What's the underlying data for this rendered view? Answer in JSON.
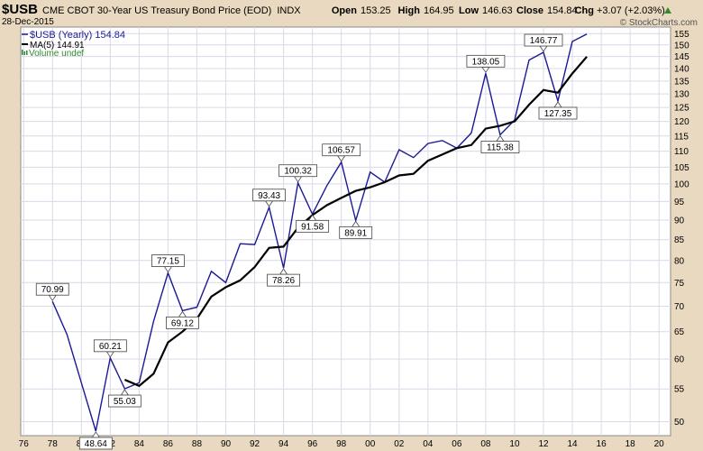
{
  "header": {
    "symbol": "$USB",
    "description": "CME CBOT 30-Year US Treasury Bond Price (EOD)",
    "exchange": "INDX",
    "date": "28-Dec-2015",
    "open_label": "Open",
    "open": "153.25",
    "high_label": "High",
    "high": "164.95",
    "low_label": "Low",
    "low": "146.63",
    "close_label": "Close",
    "close": "154.84",
    "chg_label": "Chg",
    "chg": "+3.07 (+2.03%)",
    "watermark": "© StockCharts.com"
  },
  "legend": {
    "price": "$USB (Yearly) 154.84",
    "ma": "MA(5) 144.91",
    "volume": "Volume undef"
  },
  "colors": {
    "price_line": "#1a1a96",
    "ma_line": "#000000",
    "volume_icon": "#2e8b2e",
    "up_arrow": "#2e8b2e",
    "plot_bg": "#ffffff",
    "grid": "#d9d9e8",
    "frame_bg": "#e8d9c0",
    "label_box": "#ffffff"
  },
  "chart_data": {
    "type": "line",
    "y_scale": "log",
    "ylim": [
      48,
      158
    ],
    "xlim": [
      1975.8,
      2020.8
    ],
    "x_ticks": [
      1976,
      1978,
      1980,
      1982,
      1984,
      1986,
      1988,
      1990,
      1992,
      1994,
      1996,
      1998,
      2000,
      2002,
      2004,
      2006,
      2008,
      2010,
      2012,
      2014,
      2016,
      2018,
      2020
    ],
    "x_tick_labels": [
      "76",
      "78",
      "80",
      "82",
      "84",
      "86",
      "88",
      "90",
      "92",
      "94",
      "96",
      "98",
      "00",
      "02",
      "04",
      "06",
      "08",
      "10",
      "12",
      "14",
      "16",
      "18",
      "20"
    ],
    "y_ticks": [
      50,
      55,
      60,
      65,
      70,
      75,
      80,
      85,
      90,
      95,
      100,
      105,
      110,
      115,
      120,
      125,
      130,
      135,
      140,
      145,
      150,
      155
    ],
    "grid": true,
    "legend_position": "top-left",
    "series": [
      {
        "name": "$USB (Yearly)",
        "x": [
          1978,
          1979,
          1980,
          1981,
          1982,
          1983,
          1984,
          1985,
          1986,
          1987,
          1988,
          1989,
          1990,
          1991,
          1992,
          1993,
          1994,
          1995,
          1996,
          1997,
          1998,
          1999,
          2000,
          2001,
          2002,
          2003,
          2004,
          2005,
          2006,
          2007,
          2008,
          2009,
          2010,
          2011,
          2012,
          2013,
          2014,
          2015
        ],
        "values": [
          70.99,
          64.5,
          56.0,
          48.64,
          60.21,
          55.03,
          56.0,
          67.0,
          77.15,
          69.12,
          69.8,
          77.5,
          75.0,
          84.0,
          83.8,
          93.43,
          78.26,
          100.32,
          91.58,
          99.5,
          106.57,
          89.91,
          103.5,
          100.5,
          110.5,
          108.0,
          112.5,
          113.5,
          111.0,
          116.0,
          138.05,
          115.38,
          120.5,
          143.5,
          146.77,
          127.35,
          151.5,
          154.84
        ]
      },
      {
        "name": "MA(5)",
        "x": [
          1983,
          1984,
          1985,
          1986,
          1987,
          1988,
          1989,
          1990,
          1991,
          1992,
          1993,
          1994,
          1995,
          1996,
          1997,
          1998,
          1999,
          2000,
          2001,
          2002,
          2003,
          2004,
          2005,
          2006,
          2007,
          2008,
          2009,
          2010,
          2011,
          2012,
          2013,
          2014,
          2015
        ],
        "values": [
          56.5,
          55.5,
          57.5,
          63.0,
          65.0,
          67.5,
          72.0,
          74.0,
          75.5,
          78.5,
          83.0,
          83.3,
          88.0,
          91.3,
          94.0,
          96.0,
          98.0,
          99.0,
          100.5,
          102.5,
          103.0,
          107.0,
          109.0,
          111.0,
          112.0,
          117.5,
          118.5,
          120.0,
          126.0,
          131.5,
          130.5,
          138.0,
          144.91
        ]
      }
    ],
    "annotations": [
      {
        "x": 1978,
        "value": "70.99",
        "position": "above"
      },
      {
        "x": 1981,
        "value": "48.64",
        "position": "below"
      },
      {
        "x": 1982,
        "value": "60.21",
        "position": "above"
      },
      {
        "x": 1983,
        "value": "55.03",
        "position": "below"
      },
      {
        "x": 1986,
        "value": "77.15",
        "position": "above"
      },
      {
        "x": 1987,
        "value": "69.12",
        "position": "below"
      },
      {
        "x": 1993,
        "value": "93.43",
        "position": "above"
      },
      {
        "x": 1994,
        "value": "78.26",
        "position": "below"
      },
      {
        "x": 1995,
        "value": "100.32",
        "position": "above"
      },
      {
        "x": 1996,
        "value": "91.58",
        "position": "below"
      },
      {
        "x": 1998,
        "value": "106.57",
        "position": "above"
      },
      {
        "x": 1999,
        "value": "89.91",
        "position": "below"
      },
      {
        "x": 2008,
        "value": "138.05",
        "position": "above"
      },
      {
        "x": 2009,
        "value": "115.38",
        "position": "below"
      },
      {
        "x": 2012,
        "value": "146.77",
        "position": "above"
      },
      {
        "x": 2013,
        "value": "127.35",
        "position": "below"
      }
    ]
  }
}
